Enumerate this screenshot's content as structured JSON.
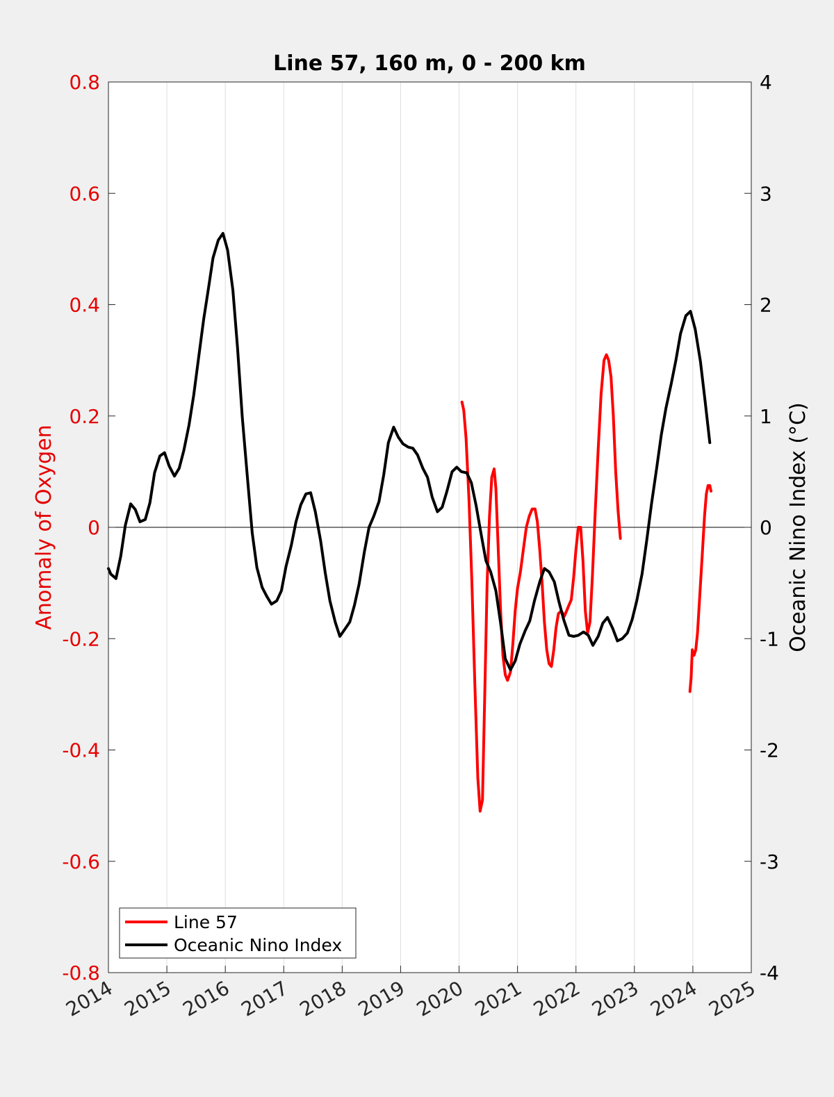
{
  "chart_data": {
    "type": "line",
    "title": "Line 57, 160 m, 0 - 200 km",
    "ylabel_left": "Anomaly of Oxygen",
    "ylabel_right": "Oceanic Nino Index (°C)",
    "xlim": [
      2014,
      2025
    ],
    "ylim_left": [
      -0.8,
      0.8
    ],
    "ylim_right": [
      -4,
      4
    ],
    "x_ticks": [
      "2014",
      "2015",
      "2016",
      "2017",
      "2018",
      "2019",
      "2020",
      "2021",
      "2022",
      "2023",
      "2024",
      "2025"
    ],
    "y_ticks_left": [
      "0.8",
      "0.6",
      "0.4",
      "0.2",
      "0",
      "-0.2",
      "-0.4",
      "-0.6",
      "-0.8"
    ],
    "y_ticks_right": [
      "4",
      "3",
      "2",
      "1",
      "0",
      "-1",
      "-2",
      "-3",
      "-4"
    ],
    "grid": "vertical",
    "zero_line": true,
    "legend_position": "bottom-left",
    "colors": {
      "left_axis": "#e60000",
      "right_axis": "#000000",
      "background": "#f0f0f0",
      "plot_bg": "#ffffff"
    },
    "series": [
      {
        "name": "Line 57",
        "color": "#ff0000",
        "axis": "left",
        "segments": [
          [
            [
              2020.05,
              0.225
            ],
            [
              2020.08,
              0.21
            ],
            [
              2020.12,
              0.16
            ],
            [
              2020.17,
              0.05
            ],
            [
              2020.22,
              -0.1
            ],
            [
              2020.27,
              -0.28
            ],
            [
              2020.32,
              -0.45
            ],
            [
              2020.36,
              -0.51
            ],
            [
              2020.4,
              -0.49
            ],
            [
              2020.44,
              -0.3
            ],
            [
              2020.48,
              -0.1
            ],
            [
              2020.52,
              0.02
            ],
            [
              2020.56,
              0.09
            ],
            [
              2020.6,
              0.105
            ],
            [
              2020.63,
              0.07
            ],
            [
              2020.67,
              -0.04
            ],
            [
              2020.71,
              -0.15
            ],
            [
              2020.75,
              -0.23
            ],
            [
              2020.79,
              -0.265
            ],
            [
              2020.83,
              -0.275
            ],
            [
              2020.88,
              -0.26
            ],
            [
              2020.92,
              -0.21
            ],
            [
              2020.96,
              -0.15
            ],
            [
              2021.0,
              -0.11
            ],
            [
              2021.05,
              -0.08
            ],
            [
              2021.1,
              -0.04
            ],
            [
              2021.15,
              0.0
            ],
            [
              2021.2,
              0.02
            ],
            [
              2021.25,
              0.033
            ],
            [
              2021.3,
              0.033
            ],
            [
              2021.34,
              0.01
            ],
            [
              2021.38,
              -0.04
            ],
            [
              2021.42,
              -0.1
            ],
            [
              2021.46,
              -0.17
            ],
            [
              2021.5,
              -0.22
            ],
            [
              2021.54,
              -0.245
            ],
            [
              2021.58,
              -0.25
            ],
            [
              2021.62,
              -0.22
            ],
            [
              2021.66,
              -0.18
            ],
            [
              2021.7,
              -0.155
            ],
            [
              2021.75,
              -0.15
            ],
            [
              2021.8,
              -0.16
            ],
            [
              2021.84,
              -0.15
            ],
            [
              2021.88,
              -0.14
            ],
            [
              2021.92,
              -0.13
            ],
            [
              2021.96,
              -0.09
            ],
            [
              2022.0,
              -0.04
            ],
            [
              2022.04,
              0.0
            ],
            [
              2022.08,
              0.0
            ],
            [
              2022.12,
              -0.06
            ],
            [
              2022.16,
              -0.15
            ],
            [
              2022.2,
              -0.19
            ],
            [
              2022.24,
              -0.17
            ],
            [
              2022.28,
              -0.09
            ],
            [
              2022.33,
              0.03
            ],
            [
              2022.38,
              0.14
            ],
            [
              2022.43,
              0.24
            ],
            [
              2022.48,
              0.3
            ],
            [
              2022.52,
              0.31
            ],
            [
              2022.56,
              0.3
            ],
            [
              2022.6,
              0.27
            ],
            [
              2022.64,
              0.2
            ],
            [
              2022.68,
              0.1
            ],
            [
              2022.72,
              0.03
            ],
            [
              2022.76,
              -0.02
            ]
          ],
          [
            [
              2023.95,
              -0.295
            ],
            [
              2023.97,
              -0.27
            ],
            [
              2023.99,
              -0.22
            ],
            [
              2024.02,
              -0.23
            ],
            [
              2024.05,
              -0.22
            ],
            [
              2024.08,
              -0.19
            ],
            [
              2024.12,
              -0.12
            ],
            [
              2024.16,
              -0.05
            ],
            [
              2024.2,
              0.02
            ],
            [
              2024.23,
              0.06
            ],
            [
              2024.26,
              0.075
            ],
            [
              2024.29,
              0.075
            ],
            [
              2024.31,
              0.065
            ]
          ]
        ]
      },
      {
        "name": "Oceanic Nino Index",
        "color": "#000000",
        "axis": "right",
        "segments": [
          [
            [
              2014.0,
              -0.37
            ],
            [
              2014.04,
              -0.42
            ],
            [
              2014.13,
              -0.46
            ],
            [
              2014.21,
              -0.26
            ],
            [
              2014.29,
              0.02
            ],
            [
              2014.38,
              0.21
            ],
            [
              2014.46,
              0.16
            ],
            [
              2014.54,
              0.05
            ],
            [
              2014.63,
              0.07
            ],
            [
              2014.71,
              0.22
            ],
            [
              2014.79,
              0.49
            ],
            [
              2014.88,
              0.64
            ],
            [
              2014.96,
              0.67
            ],
            [
              2015.04,
              0.55
            ],
            [
              2015.13,
              0.46
            ],
            [
              2015.21,
              0.53
            ],
            [
              2015.29,
              0.69
            ],
            [
              2015.38,
              0.92
            ],
            [
              2015.46,
              1.19
            ],
            [
              2015.54,
              1.51
            ],
            [
              2015.63,
              1.87
            ],
            [
              2015.71,
              2.14
            ],
            [
              2015.79,
              2.42
            ],
            [
              2015.88,
              2.58
            ],
            [
              2015.96,
              2.64
            ],
            [
              2016.04,
              2.49
            ],
            [
              2016.13,
              2.13
            ],
            [
              2016.21,
              1.61
            ],
            [
              2016.29,
              0.99
            ],
            [
              2016.38,
              0.44
            ],
            [
              2016.46,
              -0.05
            ],
            [
              2016.54,
              -0.36
            ],
            [
              2016.63,
              -0.54
            ],
            [
              2016.71,
              -0.62
            ],
            [
              2016.79,
              -0.69
            ],
            [
              2016.88,
              -0.66
            ],
            [
              2016.96,
              -0.57
            ],
            [
              2017.04,
              -0.35
            ],
            [
              2017.13,
              -0.16
            ],
            [
              2017.21,
              0.05
            ],
            [
              2017.29,
              0.2
            ],
            [
              2017.38,
              0.3
            ],
            [
              2017.46,
              0.31
            ],
            [
              2017.54,
              0.14
            ],
            [
              2017.63,
              -0.12
            ],
            [
              2017.71,
              -0.41
            ],
            [
              2017.79,
              -0.66
            ],
            [
              2017.88,
              -0.85
            ],
            [
              2017.96,
              -0.98
            ],
            [
              2018.04,
              -0.92
            ],
            [
              2018.13,
              -0.85
            ],
            [
              2018.21,
              -0.7
            ],
            [
              2018.29,
              -0.51
            ],
            [
              2018.38,
              -0.22
            ],
            [
              2018.46,
              0.0
            ],
            [
              2018.54,
              0.1
            ],
            [
              2018.63,
              0.23
            ],
            [
              2018.71,
              0.47
            ],
            [
              2018.79,
              0.76
            ],
            [
              2018.88,
              0.9
            ],
            [
              2018.96,
              0.81
            ],
            [
              2019.04,
              0.75
            ],
            [
              2019.13,
              0.72
            ],
            [
              2019.21,
              0.71
            ],
            [
              2019.29,
              0.65
            ],
            [
              2019.38,
              0.53
            ],
            [
              2019.46,
              0.45
            ],
            [
              2019.54,
              0.27
            ],
            [
              2019.63,
              0.14
            ],
            [
              2019.71,
              0.18
            ],
            [
              2019.79,
              0.32
            ],
            [
              2019.88,
              0.5
            ],
            [
              2019.96,
              0.54
            ],
            [
              2020.04,
              0.5
            ],
            [
              2020.13,
              0.49
            ],
            [
              2020.21,
              0.4
            ],
            [
              2020.29,
              0.2
            ],
            [
              2020.38,
              -0.07
            ],
            [
              2020.46,
              -0.3
            ],
            [
              2020.54,
              -0.4
            ],
            [
              2020.63,
              -0.57
            ],
            [
              2020.71,
              -0.86
            ],
            [
              2020.79,
              -1.18
            ],
            [
              2020.88,
              -1.28
            ],
            [
              2020.96,
              -1.2
            ],
            [
              2021.04,
              -1.05
            ],
            [
              2021.13,
              -0.93
            ],
            [
              2021.21,
              -0.84
            ],
            [
              2021.29,
              -0.66
            ],
            [
              2021.38,
              -0.49
            ],
            [
              2021.46,
              -0.37
            ],
            [
              2021.54,
              -0.4
            ],
            [
              2021.63,
              -0.49
            ],
            [
              2021.71,
              -0.67
            ],
            [
              2021.79,
              -0.83
            ],
            [
              2021.88,
              -0.97
            ],
            [
              2021.96,
              -0.98
            ],
            [
              2022.04,
              -0.97
            ],
            [
              2022.13,
              -0.94
            ],
            [
              2022.21,
              -0.97
            ],
            [
              2022.29,
              -1.06
            ],
            [
              2022.38,
              -0.98
            ],
            [
              2022.46,
              -0.86
            ],
            [
              2022.54,
              -0.81
            ],
            [
              2022.63,
              -0.91
            ],
            [
              2022.71,
              -1.02
            ],
            [
              2022.79,
              -1.0
            ],
            [
              2022.88,
              -0.95
            ],
            [
              2022.96,
              -0.83
            ],
            [
              2023.04,
              -0.66
            ],
            [
              2023.13,
              -0.42
            ],
            [
              2023.21,
              -0.12
            ],
            [
              2023.29,
              0.2
            ],
            [
              2023.38,
              0.53
            ],
            [
              2023.46,
              0.83
            ],
            [
              2023.54,
              1.07
            ],
            [
              2023.63,
              1.29
            ],
            [
              2023.71,
              1.5
            ],
            [
              2023.79,
              1.74
            ],
            [
              2023.88,
              1.9
            ],
            [
              2023.96,
              1.94
            ],
            [
              2024.04,
              1.78
            ],
            [
              2024.13,
              1.49
            ],
            [
              2024.21,
              1.13
            ],
            [
              2024.29,
              0.76
            ]
          ]
        ]
      }
    ]
  }
}
